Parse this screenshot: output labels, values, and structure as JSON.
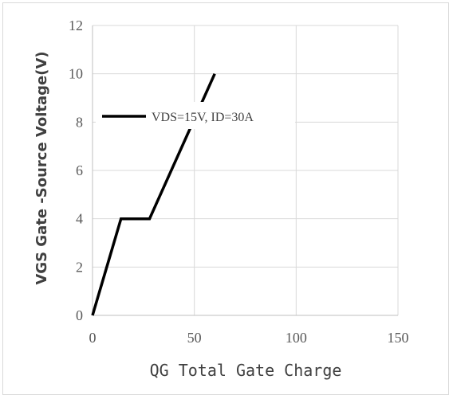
{
  "chart_data": {
    "type": "line",
    "title": "",
    "xlabel": "QG Total Gate Charge",
    "ylabel": "VGS Gate -Source Voltage(V)",
    "xlim": [
      0,
      150
    ],
    "ylim": [
      0,
      12
    ],
    "xticks": [
      "0",
      "50",
      "100",
      "150"
    ],
    "yticks": [
      "0",
      "2",
      "4",
      "6",
      "8",
      "10",
      "12"
    ],
    "grid": true,
    "legend_position": "top-left",
    "series": [
      {
        "name": "VDS=15V,  ID=30A",
        "color": "#000000",
        "x": [
          0,
          14,
          28,
          60
        ],
        "y": [
          0,
          4,
          4,
          10
        ]
      }
    ]
  }
}
